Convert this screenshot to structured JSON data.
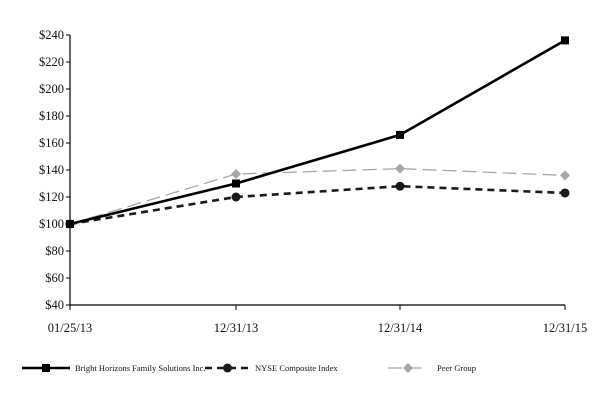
{
  "chart_data": {
    "type": "line",
    "title": "",
    "xlabel": "",
    "ylabel": "",
    "categories": [
      "01/25/13",
      "12/31/13",
      "12/31/14",
      "12/31/15"
    ],
    "ylim": [
      40,
      240
    ],
    "yticks": [
      40,
      60,
      80,
      100,
      120,
      140,
      160,
      180,
      200,
      220,
      240
    ],
    "ytick_labels": [
      "$40",
      "$60",
      "$80",
      "$100",
      "$120",
      "$140",
      "$160",
      "$180",
      "$200",
      "$220",
      "$240"
    ],
    "grid": false,
    "legend_position": "bottom",
    "series": [
      {
        "name": "Bright Horizons Family Solutions Inc.",
        "values": [
          100,
          130,
          166,
          236
        ],
        "color": "#000000",
        "line_style": "solid",
        "marker": "square"
      },
      {
        "name": "NYSE Composite Index",
        "values": [
          100,
          120,
          128,
          123
        ],
        "color": "#1a1a1a",
        "line_style": "dashed",
        "marker": "circle"
      },
      {
        "name": "Peer Group",
        "values": [
          100,
          137,
          141,
          136
        ],
        "color": "#a6a6a6",
        "line_style": "long-dash",
        "marker": "diamond"
      }
    ]
  }
}
